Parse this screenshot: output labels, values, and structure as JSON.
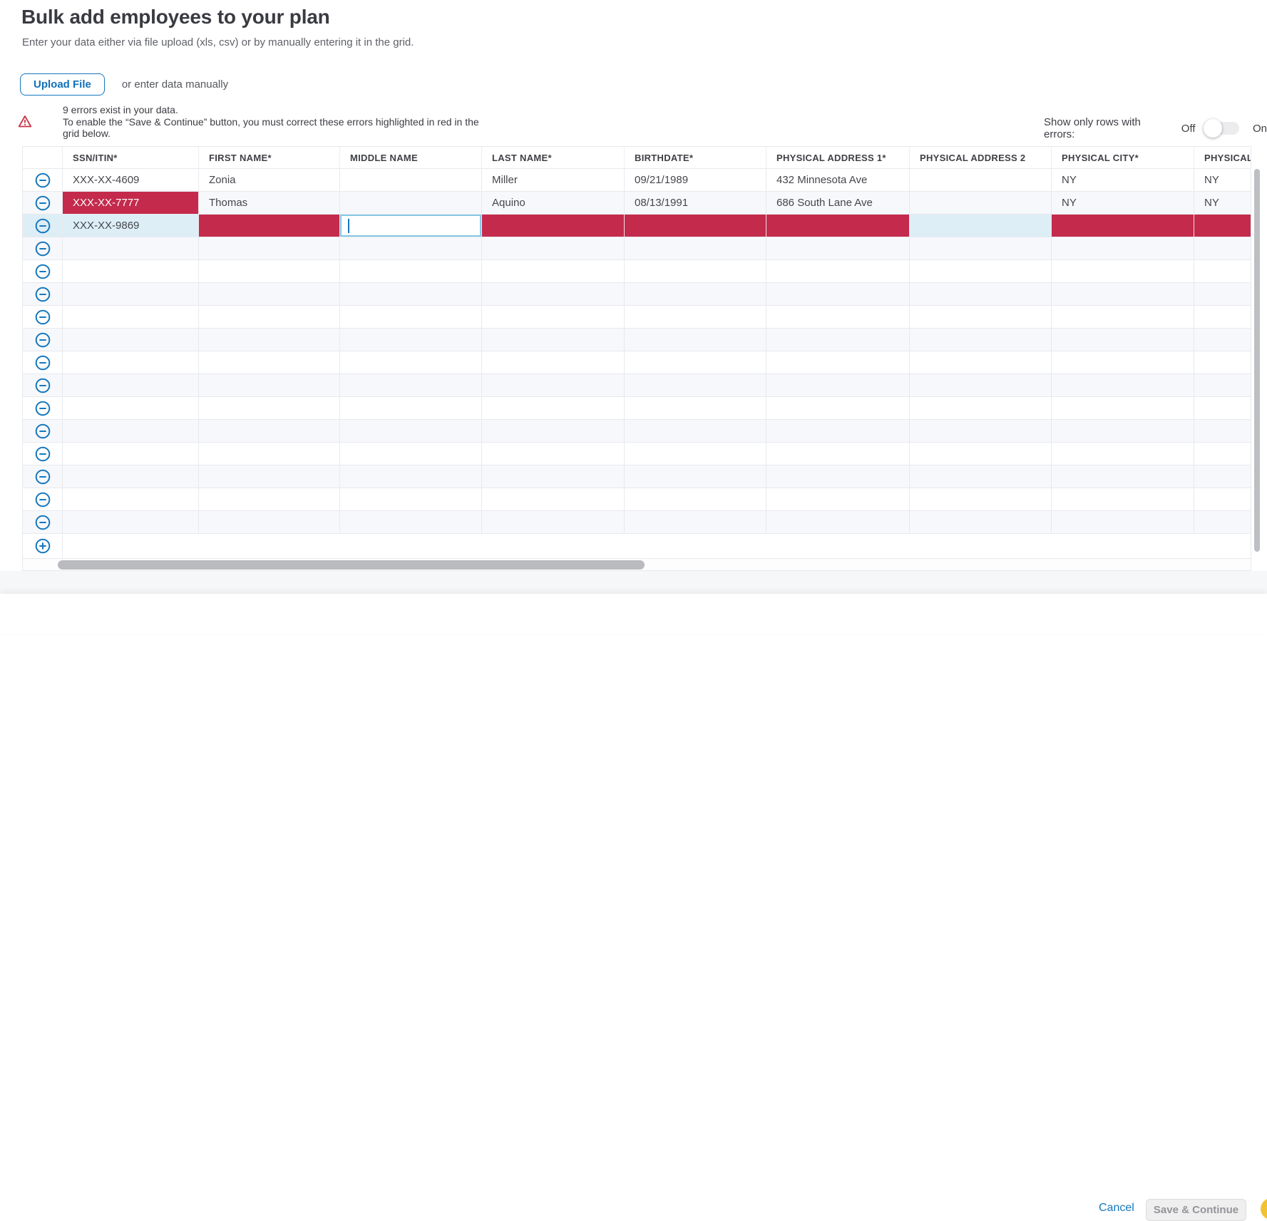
{
  "header": {
    "title": "Bulk add employees to your plan",
    "subtitle": "Enter your data either via file upload (xls, csv) or by manually entering it in the grid.",
    "upload_button_label": "Upload File",
    "manual_entry_text": "or enter data manually"
  },
  "error_banner": {
    "icon": "warning-triangle-icon",
    "line1": "9 errors exist in your data.",
    "line2": "To enable the “Save & Continue” button, you must correct these errors highlighted in red in the grid below."
  },
  "error_toggle": {
    "label": "Show only rows with errors:",
    "off_label": "Off",
    "on_label": "On",
    "state": "off"
  },
  "grid": {
    "columns": [
      {
        "key": "ssn",
        "label": "SSN/ITIN*"
      },
      {
        "key": "first",
        "label": "FIRST NAME*"
      },
      {
        "key": "middle",
        "label": "MIDDLE NAME"
      },
      {
        "key": "last",
        "label": "LAST NAME*"
      },
      {
        "key": "birthdate",
        "label": "BIRTHDATE*"
      },
      {
        "key": "addr1",
        "label": "PHYSICAL ADDRESS 1*"
      },
      {
        "key": "addr2",
        "label": "PHYSICAL ADDRESS 2"
      },
      {
        "key": "city",
        "label": "PHYSICAL CITY*"
      },
      {
        "key": "state",
        "label": "PHYSICAL ST"
      }
    ],
    "rows": [
      {
        "handle": "minus",
        "zebra": "white",
        "cells": [
          {
            "text": "XXX-XX-4609",
            "state": "normal"
          },
          {
            "text": "Zonia",
            "state": "normal"
          },
          {
            "text": "",
            "state": "normal"
          },
          {
            "text": "Miller",
            "state": "normal"
          },
          {
            "text": "09/21/1989",
            "state": "normal"
          },
          {
            "text": "432 Minnesota Ave",
            "state": "normal"
          },
          {
            "text": "",
            "state": "normal"
          },
          {
            "text": "NY",
            "state": "normal"
          },
          {
            "text": "NY",
            "state": "normal"
          }
        ]
      },
      {
        "handle": "minus",
        "zebra": "shade",
        "cells": [
          {
            "text": "XXX-XX-7777",
            "state": "error-text"
          },
          {
            "text": "Thomas",
            "state": "normal"
          },
          {
            "text": "",
            "state": "normal"
          },
          {
            "text": "Aquino",
            "state": "normal"
          },
          {
            "text": "08/13/1991",
            "state": "normal"
          },
          {
            "text": "686 South Lane Ave",
            "state": "normal"
          },
          {
            "text": "",
            "state": "normal"
          },
          {
            "text": "NY",
            "state": "normal"
          },
          {
            "text": "NY",
            "state": "normal"
          }
        ]
      },
      {
        "handle": "minus",
        "zebra": "white",
        "selected": true,
        "cells": [
          {
            "text": "XXX-XX-9869",
            "state": "selected"
          },
          {
            "text": "",
            "state": "error"
          },
          {
            "text": "",
            "state": "editing"
          },
          {
            "text": "",
            "state": "error"
          },
          {
            "text": "",
            "state": "error"
          },
          {
            "text": "",
            "state": "error"
          },
          {
            "text": "",
            "state": "selected"
          },
          {
            "text": "",
            "state": "error"
          },
          {
            "text": "",
            "state": "error"
          }
        ]
      },
      {
        "handle": "minus",
        "zebra": "shade"
      },
      {
        "handle": "minus",
        "zebra": "white"
      },
      {
        "handle": "minus",
        "zebra": "shade"
      },
      {
        "handle": "minus",
        "zebra": "white"
      },
      {
        "handle": "minus",
        "zebra": "shade"
      },
      {
        "handle": "minus",
        "zebra": "white"
      },
      {
        "handle": "minus",
        "zebra": "shade"
      },
      {
        "handle": "minus",
        "zebra": "white"
      },
      {
        "handle": "minus",
        "zebra": "shade"
      },
      {
        "handle": "minus",
        "zebra": "white"
      },
      {
        "handle": "minus",
        "zebra": "shade"
      },
      {
        "handle": "minus",
        "zebra": "white"
      },
      {
        "handle": "minus",
        "zebra": "shade"
      },
      {
        "handle": "plus",
        "type": "add"
      }
    ]
  },
  "footer": {
    "cancel_label": "Cancel",
    "save_label": "Save & Continue",
    "save_enabled": false
  },
  "colors": {
    "accent_blue": "#1577be",
    "error_red": "#c42a4c",
    "selection_blue": "#ddeef7",
    "zebra_shade": "#f7f8fb",
    "chat_bubble_yellow": "#f1c232"
  }
}
